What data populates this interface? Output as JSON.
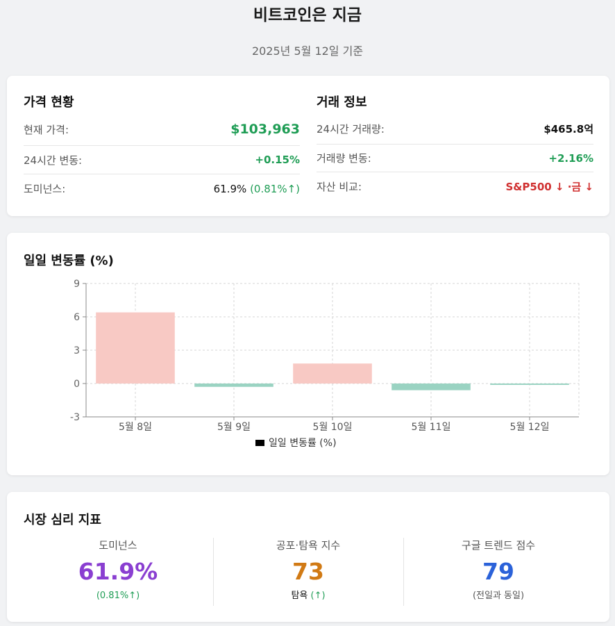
{
  "header": {
    "title": "비트코인은 지금",
    "subtitle": "2025년 5월 12일 기준"
  },
  "price_status": {
    "title": "가격 현황",
    "rows": [
      {
        "label": "현재 가격:",
        "value": "$103,963"
      },
      {
        "label": "24시간 변동:",
        "value": "+0.15%"
      },
      {
        "label": "도미넌스:",
        "value": "61.9%",
        "extra": "(0.81%↑)"
      }
    ]
  },
  "trade_info": {
    "title": "거래 정보",
    "rows": [
      {
        "label": "24시간 거래량:",
        "value": "$465.8억"
      },
      {
        "label": "거래량 변동:",
        "value": "+2.16%"
      },
      {
        "label": "자산 비교:",
        "value": "S&P500 ↓ ·금 ↓"
      }
    ]
  },
  "chart_data": {
    "type": "bar",
    "title": "일일 변동률 (%)",
    "categories": [
      "5월 8일",
      "5월 9일",
      "5월 10일",
      "5월 11일",
      "5월 12일"
    ],
    "series": [
      {
        "name": "일일 변동률 (%)",
        "values": [
          6.4,
          -0.3,
          1.8,
          -0.6,
          -0.1
        ]
      }
    ],
    "ylim": [
      -3,
      9
    ],
    "yticks": [
      -3,
      0,
      3,
      6,
      9
    ],
    "grid": true,
    "legend_position": "bottom",
    "colors": {
      "positive": "#f8c9c4",
      "negative": "#9ad3c2",
      "legend": "#000000"
    }
  },
  "sentiment": {
    "title": "시장 심리 지표",
    "items": [
      {
        "label": "도미넌스",
        "value": "61.9%",
        "note": "(0.81%↑)",
        "color": "#8a3fd1",
        "note_color": "#1f9d55"
      },
      {
        "label": "공포·탐욕 지수",
        "value": "73",
        "note_main": "탐욕",
        "note_sub": "(↑)",
        "color": "#d17a14",
        "note_color": "#1f9d55"
      },
      {
        "label": "구글 트렌드 점수",
        "value": "79",
        "note": "(전일과 동일)",
        "color": "#2b62d9",
        "note_color": "#555555"
      }
    ]
  }
}
